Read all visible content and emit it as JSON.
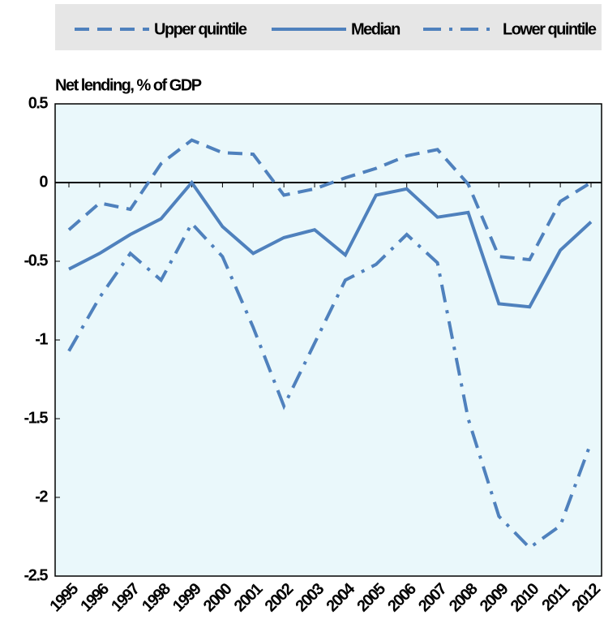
{
  "chart_data": {
    "type": "line",
    "y_label": "Net lending, % of GDP",
    "categories": [
      "1995",
      "1996",
      "1997",
      "1998",
      "1999",
      "2000",
      "2001",
      "2002",
      "2003",
      "2004",
      "2005",
      "2006",
      "2007",
      "2008",
      "2009",
      "2010",
      "2011",
      "2012"
    ],
    "series": [
      {
        "name": "Upper quintile",
        "color": "#4f81bd",
        "style": "dashed",
        "values": [
          -0.3,
          -0.13,
          -0.17,
          0.12,
          0.27,
          0.19,
          0.18,
          -0.08,
          -0.04,
          0.03,
          0.09,
          0.17,
          0.21,
          -0.01,
          -0.47,
          -0.49,
          -0.12,
          0
        ]
      },
      {
        "name": "Median",
        "color": "#4f81bd",
        "style": "solid",
        "values": [
          -0.55,
          -0.45,
          -0.33,
          -0.23,
          0,
          -0.28,
          -0.45,
          -0.35,
          -0.3,
          -0.46,
          -0.08,
          -0.04,
          -0.22,
          -0.19,
          -0.77,
          -0.79,
          -0.43,
          -0.25
        ]
      },
      {
        "name": "Lower quintile",
        "color": "#4f81bd",
        "style": "dashdot",
        "values": [
          -1.07,
          -0.73,
          -0.45,
          -0.62,
          -0.26,
          -0.47,
          -0.92,
          -1.42,
          -1.02,
          -0.62,
          -0.52,
          -0.33,
          -0.51,
          -1.5,
          -2.12,
          -2.32,
          -2.18,
          -1.65
        ]
      }
    ],
    "ylim": [
      -2.5,
      0.5
    ],
    "yticks": [
      0.5,
      0,
      -0.5,
      -1,
      -1.5,
      -2,
      -2.5
    ],
    "legend": "top",
    "background": "#eaf8fb"
  }
}
